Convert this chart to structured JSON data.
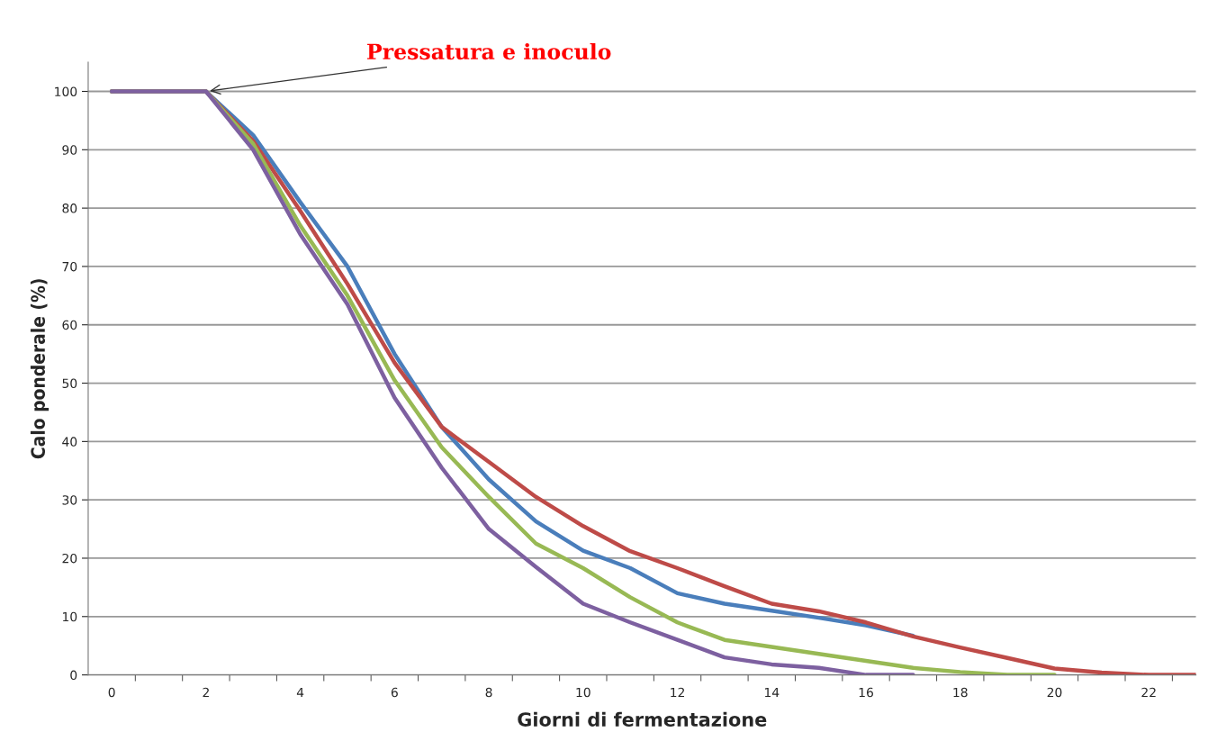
{
  "chart_data": {
    "type": "line",
    "xlabel": "Giorni di fermentazione",
    "ylabel": "Calo ponderale (%)",
    "annotations": [
      {
        "text": "Pressatura e inoculo",
        "x": 2,
        "y": 100
      }
    ],
    "xlim": [
      -0.5,
      23
    ],
    "xticks": [
      0,
      2,
      4,
      6,
      8,
      10,
      12,
      14,
      16,
      18,
      20,
      22,
      {
        "value": 0.5,
        "label": null
      },
      {
        "value": 1.5,
        "label": null
      },
      {
        "value": 2.5,
        "label": null
      },
      {
        "value": 3.5,
        "label": null
      },
      {
        "value": 4.5,
        "label": null
      },
      {
        "value": 5.5,
        "label": null
      },
      {
        "value": 6.5,
        "label": null
      },
      {
        "value": 7.5,
        "label": null
      },
      {
        "value": 8.5,
        "label": null
      },
      {
        "value": 9.5,
        "label": null
      },
      {
        "value": 10.5,
        "label": null
      },
      {
        "value": 11.5,
        "label": null
      },
      {
        "value": 12.5,
        "label": null
      },
      {
        "value": 13.5,
        "label": null
      },
      {
        "value": 14.5,
        "label": null
      },
      {
        "value": 15.5,
        "label": null
      },
      {
        "value": 16.5,
        "label": null
      },
      {
        "value": 17.5,
        "label": null
      },
      {
        "value": 18.5,
        "label": null
      },
      {
        "value": 19.5,
        "label": null
      },
      {
        "value": 20.5,
        "label": null
      },
      {
        "value": 21.5,
        "label": null
      },
      {
        "value": 22.5,
        "label": null
      }
    ],
    "ylim": [
      0,
      105
    ],
    "yticks": [
      0,
      10,
      20,
      30,
      40,
      50,
      60,
      70,
      80,
      90,
      100
    ],
    "grid": "y",
    "legend": false,
    "marker": "none",
    "line_style": "solid",
    "series": [
      {
        "color": "#4a7ebb",
        "x": [
          0,
          1,
          2,
          3,
          4,
          5,
          6,
          7,
          8,
          9,
          10,
          11,
          12,
          13,
          14,
          15,
          16,
          17
        ],
        "values": [
          100,
          100,
          100,
          92.5,
          81,
          70,
          55,
          42.5,
          33.5,
          26.3,
          21.3,
          18.3,
          14,
          12.2,
          11,
          9.8,
          8.5,
          6.7
        ]
      },
      {
        "color": "#be4b48",
        "x": [
          0,
          1,
          2,
          3,
          4,
          5,
          6,
          7,
          8,
          9,
          10,
          11,
          12,
          13,
          14,
          15,
          16,
          17,
          18,
          19,
          20,
          21,
          22,
          23
        ],
        "values": [
          100,
          100,
          100,
          91.5,
          79.5,
          67,
          53.5,
          42.5,
          36.5,
          30.5,
          25.5,
          21.2,
          18.3,
          15.2,
          12.2,
          10.9,
          9,
          6.6,
          4.7,
          2.9,
          1.1,
          0.4,
          0,
          0
        ]
      },
      {
        "color": "#98b954",
        "x": [
          0,
          1,
          2,
          3,
          4,
          5,
          6,
          7,
          8,
          9,
          10,
          11,
          12,
          13,
          14,
          15,
          16,
          17,
          18,
          19,
          20
        ],
        "values": [
          100,
          100,
          100,
          91,
          77,
          65,
          50.5,
          39,
          30.5,
          22.5,
          18.3,
          13.3,
          9,
          6,
          4.8,
          3.6,
          2.4,
          1.2,
          0.5,
          0,
          0
        ]
      },
      {
        "color": "#7d60a0",
        "x": [
          0,
          1,
          2,
          3,
          4,
          5,
          6,
          7,
          8,
          9,
          10,
          11,
          12,
          13,
          14,
          15,
          16,
          17
        ],
        "values": [
          100,
          100,
          100,
          90,
          75.5,
          63.5,
          47.5,
          35.5,
          25,
          18.5,
          12.2,
          9,
          6,
          3,
          1.8,
          1.2,
          0,
          0
        ]
      }
    ]
  }
}
